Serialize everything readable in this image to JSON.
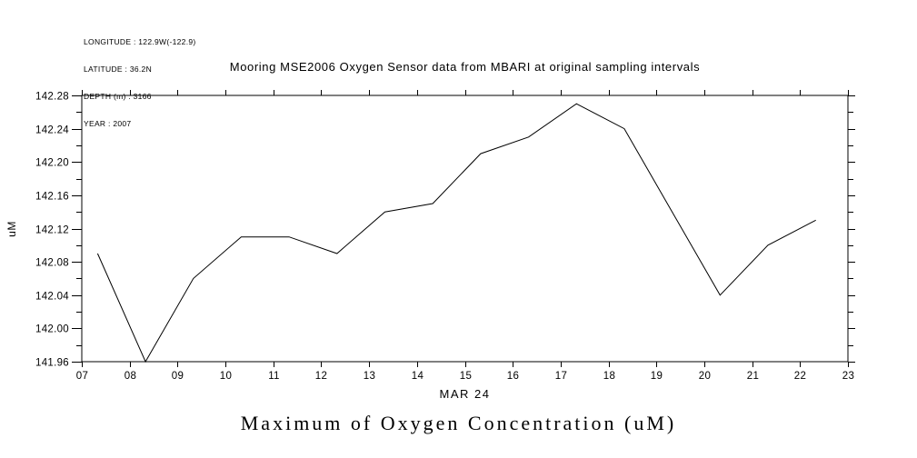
{
  "colors": {
    "foreground": "#000000",
    "background": "#ffffff"
  },
  "meta": {
    "longitude": "LONGITUDE : 122.9W(-122.9)",
    "latitude": "LATITUDE : 36.2N",
    "depth": "DEPTH (m) : 3166",
    "year": "YEAR : 2007"
  },
  "chart_data": {
    "type": "line",
    "title": "Mooring MSE2006 Oxygen Sensor data from MBARI at original sampling intervals",
    "xlabel": "MAR 24",
    "ylabel": "uM",
    "bottom_title": "Maximum of Oxygen Concentration (uM)",
    "xlim": [
      7,
      23
    ],
    "ylim": [
      141.96,
      142.28
    ],
    "grid": false,
    "legend": null,
    "line_color": "#000000",
    "x_ticks": [
      7,
      8,
      9,
      10,
      11,
      12,
      13,
      14,
      15,
      16,
      17,
      18,
      19,
      20,
      21,
      22,
      23
    ],
    "x_tick_labels": [
      "07",
      "08",
      "09",
      "10",
      "11",
      "12",
      "13",
      "14",
      "15",
      "16",
      "17",
      "18",
      "19",
      "20",
      "21",
      "22",
      "23"
    ],
    "y_ticks": [
      141.96,
      142.0,
      142.04,
      142.08,
      142.12,
      142.16,
      142.2,
      142.24,
      142.28
    ],
    "y_tick_labels": [
      "141.96",
      "142.00",
      "142.04",
      "142.08",
      "142.12",
      "142.16",
      "142.20",
      "142.24",
      "142.28"
    ],
    "y_minor_step": 0.02,
    "x": [
      7.33,
      8.33,
      9.33,
      10.33,
      11.33,
      12.33,
      13.33,
      14.33,
      15.33,
      16.33,
      17.33,
      18.33,
      19.33,
      20.33,
      21.33,
      22.33
    ],
    "values": [
      142.09,
      141.96,
      142.06,
      142.11,
      142.11,
      142.09,
      142.14,
      142.15,
      142.21,
      142.23,
      142.27,
      142.24,
      142.14,
      142.04,
      142.1,
      142.13
    ]
  }
}
